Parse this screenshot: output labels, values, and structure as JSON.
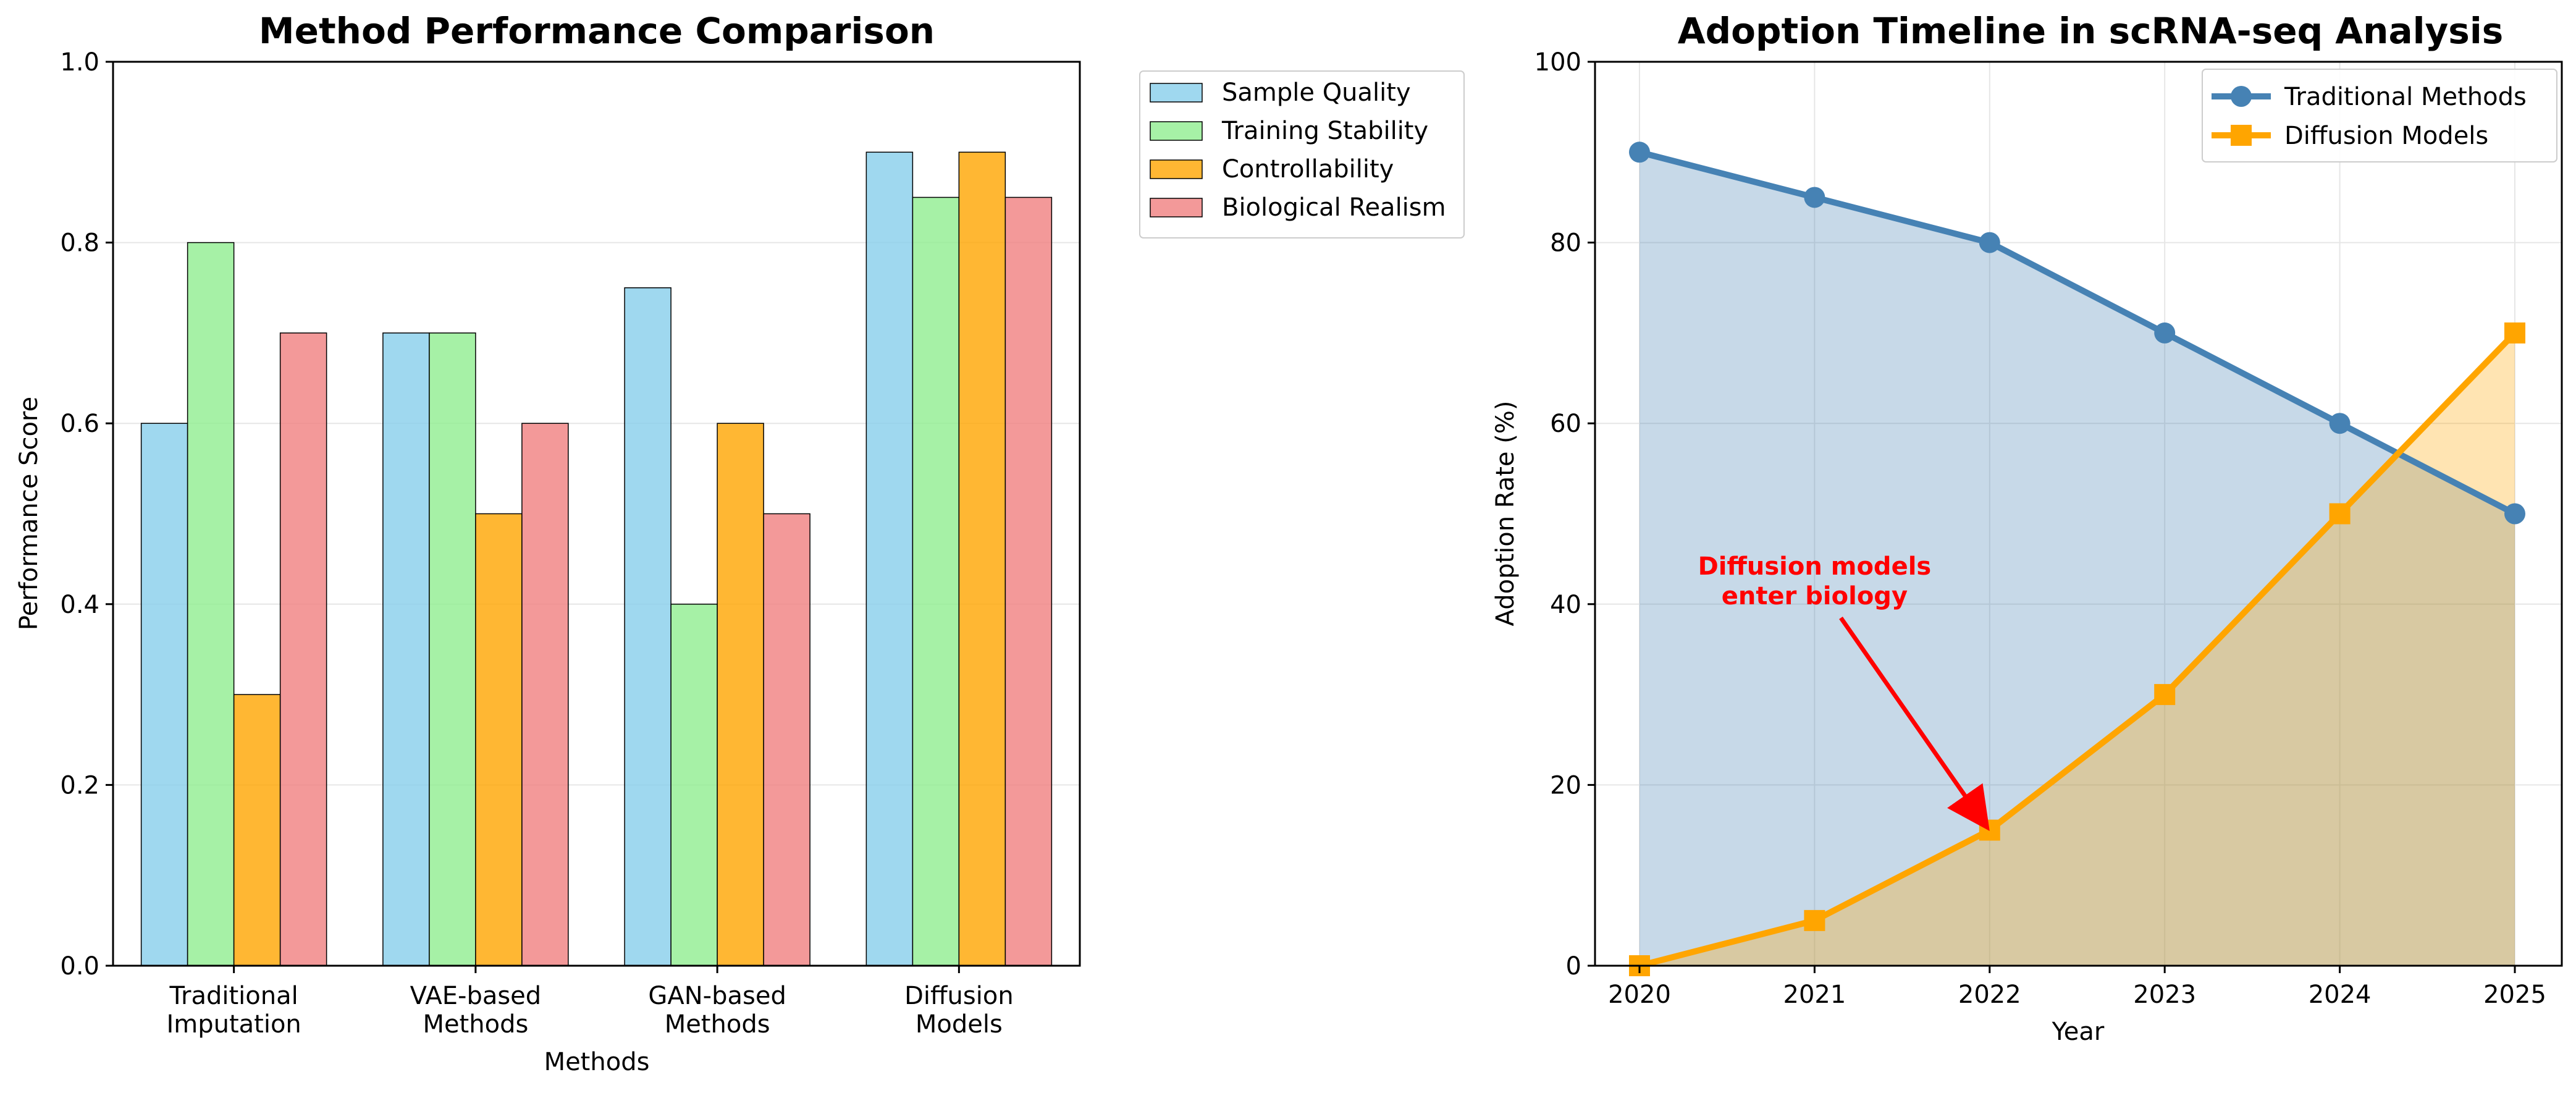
{
  "chart_data": [
    {
      "type": "bar",
      "title": "Method Performance Comparison",
      "xlabel": "Methods",
      "ylabel": "Performance Score",
      "categories": [
        [
          "Traditional",
          "Imputation"
        ],
        [
          "VAE-based",
          "Methods"
        ],
        [
          "GAN-based",
          "Methods"
        ],
        [
          "Diffusion",
          "Models"
        ]
      ],
      "series": [
        {
          "name": "Sample Quality",
          "color": "#87ceeb",
          "values": [
            0.6,
            0.7,
            0.75,
            0.9
          ]
        },
        {
          "name": "Training Stability",
          "color": "#90ee90",
          "values": [
            0.8,
            0.7,
            0.4,
            0.85
          ]
        },
        {
          "name": "Controllability",
          "color": "#ffa500",
          "values": [
            0.3,
            0.5,
            0.6,
            0.9
          ]
        },
        {
          "name": "Biological Realism",
          "color": "#f08080",
          "values": [
            0.7,
            0.6,
            0.5,
            0.85
          ]
        }
      ],
      "ylim": [
        0,
        1.0
      ],
      "yticks": [
        "0.0",
        "0.2",
        "0.4",
        "0.6",
        "0.8",
        "1.0"
      ],
      "grid": "y",
      "legend": "outside-upper-right"
    },
    {
      "type": "line",
      "title": "Adoption Timeline in scRNA-seq Analysis",
      "xlabel": "Year",
      "ylabel": "Adoption Rate (%)",
      "x": [
        2020,
        2021,
        2022,
        2023,
        2024,
        2025
      ],
      "series": [
        {
          "name": "Traditional Methods",
          "color": "#4682b4",
          "marker": "circle",
          "fill": true,
          "values": [
            90,
            85,
            80,
            70,
            60,
            50
          ]
        },
        {
          "name": "Diffusion Models",
          "color": "#ffa500",
          "marker": "square",
          "fill": true,
          "values": [
            0,
            5,
            15,
            30,
            50,
            70
          ]
        }
      ],
      "ylim": [
        0,
        100
      ],
      "yticks": [
        "0",
        "20",
        "40",
        "60",
        "80",
        "100"
      ],
      "xticks": [
        "2020",
        "2021",
        "2022",
        "2023",
        "2024",
        "2025"
      ],
      "grid": "both",
      "legend": "upper-right",
      "annotation": {
        "lines": [
          "Diffusion models",
          "enter biology"
        ],
        "color": "#ff0000",
        "arrow_to": {
          "x": 2022,
          "y": 15
        },
        "text_at": {
          "x": 2021,
          "y": 42
        }
      }
    }
  ]
}
